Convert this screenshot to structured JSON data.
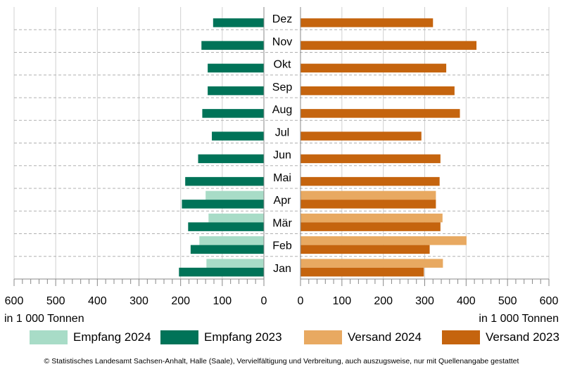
{
  "chart_data": {
    "type": "bar",
    "orientation": "horizontal-butterfly",
    "categories": [
      "Dez",
      "Nov",
      "Okt",
      "Sep",
      "Aug",
      "Jul",
      "Jun",
      "Mai",
      "Apr",
      "Mär",
      "Feb",
      "Jan"
    ],
    "left_panel": {
      "series": [
        {
          "name": "Empfang 2024",
          "color": "#a8dcc7",
          "values": [
            null,
            null,
            null,
            null,
            null,
            null,
            null,
            null,
            140,
            133,
            155,
            138
          ]
        },
        {
          "name": "Empfang 2023",
          "color": "#007358",
          "values": [
            122,
            150,
            135,
            135,
            148,
            125,
            158,
            189,
            197,
            182,
            176,
            204
          ]
        }
      ],
      "xlim": [
        600,
        0
      ],
      "ticks": [
        "600",
        "500",
        "400",
        "300",
        "200",
        "100",
        "0"
      ],
      "xlabel": "in 1 000 Tonnen"
    },
    "right_panel": {
      "series": [
        {
          "name": "Versand 2024",
          "color": "#e8a961",
          "values": [
            null,
            null,
            null,
            null,
            null,
            null,
            null,
            null,
            327,
            343,
            401,
            344
          ]
        },
        {
          "name": "Versand 2023",
          "color": "#c5640e",
          "values": [
            320,
            425,
            352,
            372,
            385,
            292,
            338,
            336,
            327,
            338,
            312,
            298
          ]
        }
      ],
      "xlim": [
        0,
        600
      ],
      "ticks": [
        "0",
        "100",
        "200",
        "300",
        "400",
        "500",
        "600"
      ],
      "xlabel": "in 1 000 Tonnen"
    }
  },
  "legend": [
    {
      "label": "Empfang 2024",
      "color": "#a8dcc7"
    },
    {
      "label": "Empfang 2023",
      "color": "#007358"
    },
    {
      "label": "Versand 2024",
      "color": "#e8a961"
    },
    {
      "label": "Versand 2023",
      "color": "#c5640e"
    }
  ],
  "footer": "© Statistisches Landesamt Sachsen-Anhalt, Halle (Saale), Vervielfältigung und Verbreitung, auch auszugsweise, nur mit Quellenangabe gestattet"
}
